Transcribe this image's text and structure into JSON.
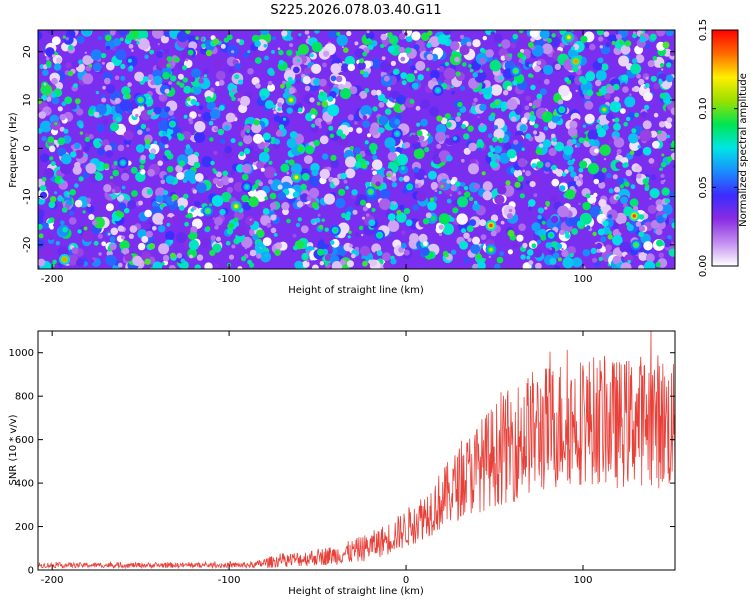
{
  "title": "S225.2026.078.03.40.G11",
  "colors": {
    "signal_line": "#e8413a",
    "axis": "#000000",
    "background": "#ffffff"
  },
  "chart_data": [
    {
      "type": "heatmap",
      "xlabel": "Height of straight line (km)",
      "ylabel": "Frequency (Hz)",
      "xlim": [
        -208,
        152
      ],
      "ylim": [
        -25,
        24.5
      ],
      "x_ticks": [
        -200,
        -100,
        0,
        100
      ],
      "y_ticks": [
        -20,
        -10,
        0,
        10,
        20
      ],
      "colorbar": {
        "label": "Normalized spectral amplitude",
        "range": [
          0,
          0.15
        ],
        "ticks": [
          "0.00",
          "0.05",
          "0.10",
          "0.15"
        ],
        "colormap": [
          "#ffffff",
          "#c18cf0",
          "#8a2be2",
          "#3b2cff",
          "#1a8cff",
          "#00e5e5",
          "#00e550",
          "#9be000",
          "#ffee00",
          "#ff6a00",
          "#ff0000"
        ]
      },
      "hotspots": [
        {
          "x": -193,
          "y": -23,
          "v": 0.13
        },
        {
          "x": -150,
          "y": 10,
          "v": 0.1
        },
        {
          "x": -132,
          "y": 5,
          "v": 0.09
        },
        {
          "x": -112,
          "y": -13,
          "v": 0.1
        },
        {
          "x": -96,
          "y": -12,
          "v": 0.12
        },
        {
          "x": -90,
          "y": -8,
          "v": 0.08
        },
        {
          "x": -65,
          "y": 10,
          "v": 0.12
        },
        {
          "x": -62,
          "y": -6,
          "v": 0.12
        },
        {
          "x": -40,
          "y": -17,
          "v": 0.09
        },
        {
          "x": -20,
          "y": -9,
          "v": 0.1
        },
        {
          "x": -15,
          "y": -18,
          "v": 0.09
        },
        {
          "x": 2,
          "y": -8,
          "v": 0.09
        },
        {
          "x": 18,
          "y": 12,
          "v": 0.08
        },
        {
          "x": 48,
          "y": -16,
          "v": 0.14
        },
        {
          "x": 48,
          "y": -21,
          "v": 0.11
        },
        {
          "x": 62,
          "y": 16,
          "v": 0.1
        },
        {
          "x": 82,
          "y": -18,
          "v": 0.09
        },
        {
          "x": 88,
          "y": 8,
          "v": 0.09
        },
        {
          "x": 96,
          "y": 18,
          "v": 0.13
        },
        {
          "x": 112,
          "y": 8,
          "v": 0.11
        },
        {
          "x": 129,
          "y": -14,
          "v": 0.14
        },
        {
          "x": 130,
          "y": -20,
          "v": 0.1
        },
        {
          "x": 92,
          "y": 23,
          "v": 0.12
        },
        {
          "x": -160,
          "y": -3,
          "v": 0.08
        },
        {
          "x": -5,
          "y": 3,
          "v": 0.08
        }
      ]
    },
    {
      "type": "line",
      "xlabel": "Height of straight line (km)",
      "ylabel": "SNR (10 * v/v)",
      "xlim": [
        -208,
        152
      ],
      "ylim": [
        0,
        1100
      ],
      "x_ticks": [
        -200,
        -100,
        0,
        100
      ],
      "y_ticks": [
        0,
        200,
        400,
        600,
        800,
        1000
      ],
      "series": [
        {
          "name": "SNR",
          "x": [
            -208,
            -180,
            -150,
            -120,
            -95,
            -85,
            -80,
            -70,
            -60,
            -50,
            -40,
            -30,
            -20,
            -10,
            0,
            10,
            20,
            30,
            40,
            50,
            60,
            70,
            80,
            90,
            100,
            110,
            120,
            130,
            140,
            152
          ],
          "envelope_mean": [
            22,
            22,
            22,
            22,
            22,
            24,
            32,
            45,
            50,
            60,
            68,
            85,
            110,
            145,
            190,
            250,
            320,
            400,
            470,
            530,
            580,
            630,
            650,
            680,
            690,
            690,
            670,
            690,
            700,
            650
          ],
          "envelope_amplitude": [
            12,
            12,
            12,
            12,
            12,
            16,
            24,
            32,
            35,
            40,
            45,
            55,
            65,
            75,
            90,
            110,
            140,
            170,
            210,
            240,
            270,
            290,
            300,
            300,
            300,
            300,
            300,
            300,
            320,
            300
          ]
        }
      ]
    }
  ]
}
